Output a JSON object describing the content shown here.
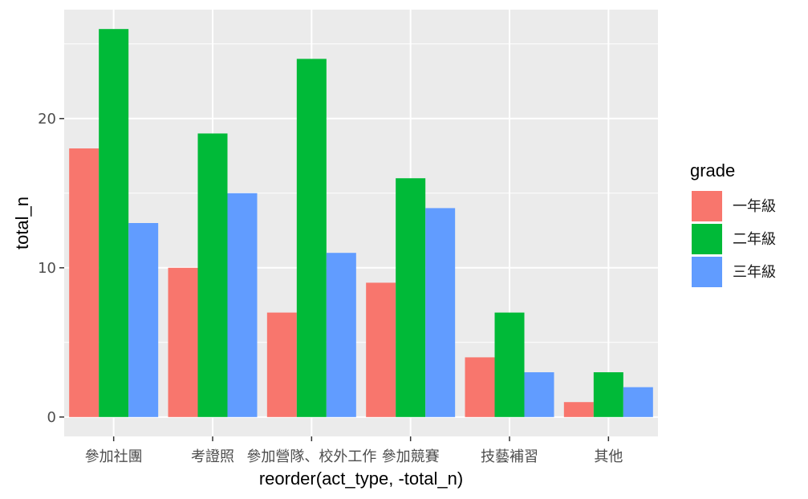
{
  "chart_data": {
    "type": "bar",
    "categories": [
      "參加社團",
      "考證照",
      "參加營隊、校外工作",
      "參加競賽",
      "技藝補習",
      "其他"
    ],
    "series": [
      {
        "name": "一年級",
        "color": "#F8766D",
        "values": [
          18,
          10,
          7,
          9,
          4,
          1
        ]
      },
      {
        "name": "二年級",
        "color": "#00BA38",
        "values": [
          26,
          19,
          24,
          16,
          7,
          3
        ]
      },
      {
        "name": "三年級",
        "color": "#619CFF",
        "values": [
          13,
          15,
          11,
          14,
          3,
          2
        ]
      }
    ],
    "xlabel": "reorder(act_type, -total_n)",
    "ylabel": "total_n",
    "ylim": [
      -1.3,
      27.3
    ],
    "yticks": [
      0,
      10,
      20
    ],
    "grid": true,
    "legend": {
      "title": "grade",
      "position": "right"
    },
    "panel_background": "#EBEBEB",
    "grid_color": "#FFFFFF"
  }
}
